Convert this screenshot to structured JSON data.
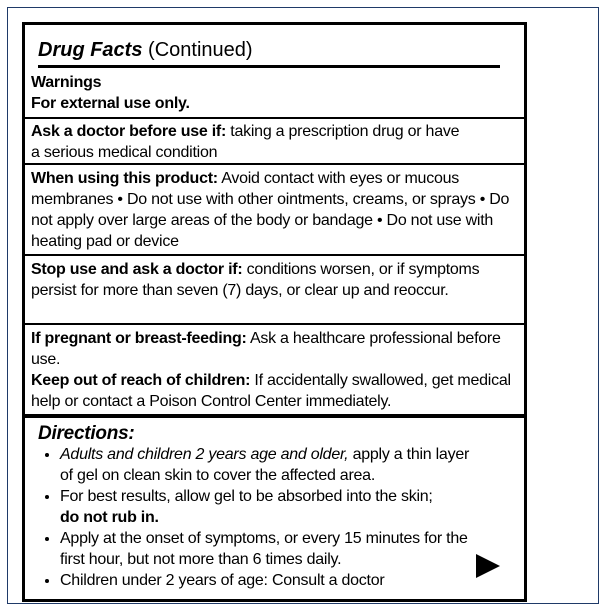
{
  "header": {
    "title": "Drug Facts",
    "subtitle": "(Continued)"
  },
  "warnings": {
    "heading": "Warnings",
    "external": "For external use only."
  },
  "sections": [
    {
      "label": "Ask a doctor before use if:",
      "text": "taking a prescription drug or have a serious medical condition"
    },
    {
      "label": "When using this product:",
      "text": "Avoid contact with eyes or mucous membranes • Do not use with other ointments, creams, or sprays •  Do not apply over large areas of the body or bandage •  Do not use with heating pad or device"
    },
    {
      "label": "Stop use and ask a doctor if:",
      "text": "conditions worsen, or if symptoms persist for more than seven (7) days, or clear up and reoccur."
    },
    {
      "label": "If pregnant or breast-feeding:",
      "text": "Ask a healthcare professional before use."
    },
    {
      "label": "Keep out of reach of children:",
      "text": "If accidentally swallowed, get medical help or contact a Poison Control Center immediately."
    }
  ],
  "directions": {
    "heading": "Directions:",
    "items": [
      {
        "italic": "Adults and children 2 years age and older,",
        "text": "apply a thin layer of gel on clean skin to cover the affected area."
      },
      {
        "text": "For best results, allow gel to be absorbed into the skin;",
        "bold": "do not rub in."
      },
      {
        "text": "Apply at the onset of symptoms, or every 15 minutes for the first hour, but not more than 6 times daily."
      },
      {
        "text": "Children under 2 years of age: Consult a doctor"
      }
    ]
  }
}
